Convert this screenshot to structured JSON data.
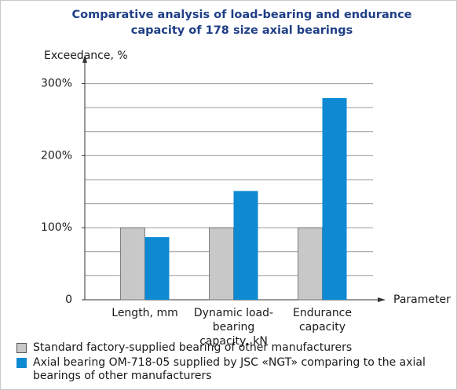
{
  "chart_data": {
    "type": "bar",
    "title": "Comparative analysis of load-bearing and endurance capacity of 178 size axial bearings",
    "y_label": "Exceedance, %",
    "x_label": "Parameter",
    "categories": [
      "Length, mm",
      "Dynamic load-bearing\ncapacity, kN",
      "Endurance\ncapacity"
    ],
    "series": [
      {
        "name": "Standard factory-supplied bearing of other manufacturers",
        "color": "#c8c8c8",
        "values": [
          100,
          100,
          100
        ]
      },
      {
        "name": "Axial bearing OM-718-05 supplied by JSC «NGT» comparing to the axial bearings of other manufacturers",
        "color": "#0e8ad2",
        "values": [
          87,
          151,
          280
        ]
      }
    ],
    "ylim": [
      0,
      333.3
    ],
    "yticks": [
      0,
      {
        "value": 100,
        "label": "100%"
      },
      {
        "value": 200,
        "label": "200%"
      },
      {
        "value": 300,
        "label": "300%"
      }
    ],
    "grid": true,
    "grid_subdivisions": 3
  }
}
